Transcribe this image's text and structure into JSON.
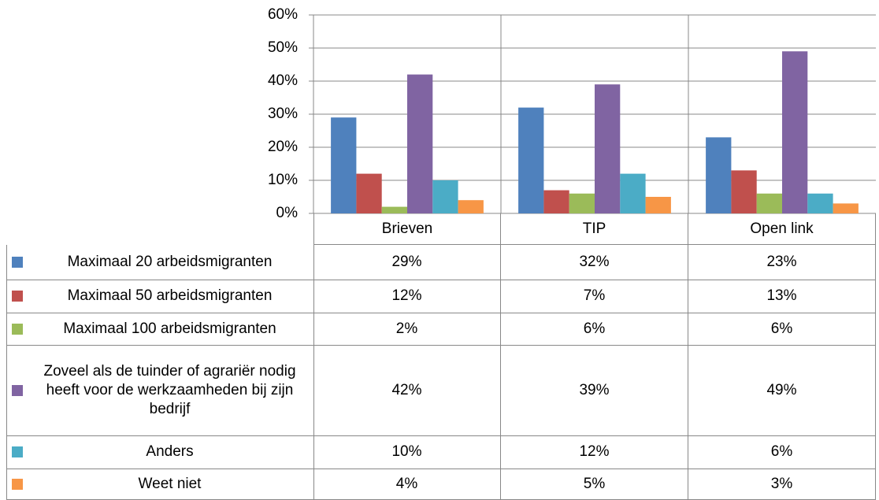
{
  "chart_data": {
    "type": "bar",
    "categories": [
      "Brieven",
      "TIP",
      "Open link"
    ],
    "series": [
      {
        "name": "Maximaal 20 arbeidsmigranten",
        "color": "#4f81bd",
        "values": [
          29,
          32,
          23
        ],
        "value_labels": [
          "29%",
          "32%",
          "23%"
        ]
      },
      {
        "name": "Maximaal 50 arbeidsmigranten",
        "color": "#c0504d",
        "values": [
          12,
          7,
          13
        ],
        "value_labels": [
          "12%",
          "7%",
          "13%"
        ]
      },
      {
        "name": "Maximaal 100 arbeidsmigranten",
        "color": "#9bbb59",
        "values": [
          2,
          6,
          6
        ],
        "value_labels": [
          "2%",
          "6%",
          "6%"
        ]
      },
      {
        "name": "Zoveel als de tuinder of agrariër nodig heeft voor de werkzaamheden bij zijn bedrijf",
        "color": "#8064a2",
        "values": [
          42,
          39,
          49
        ],
        "value_labels": [
          "42%",
          "39%",
          "49%"
        ]
      },
      {
        "name": "Anders",
        "color": "#4bacc6",
        "values": [
          10,
          12,
          6
        ],
        "value_labels": [
          "10%",
          "12%",
          "6%"
        ]
      },
      {
        "name": "Weet niet",
        "color": "#f79646",
        "values": [
          4,
          5,
          3
        ],
        "value_labels": [
          "4%",
          "5%",
          "3%"
        ]
      }
    ],
    "ylim": [
      0,
      60
    ],
    "yticks": [
      {
        "value": 0,
        "label": "0%"
      },
      {
        "value": 10,
        "label": "10%"
      },
      {
        "value": 20,
        "label": "20%"
      },
      {
        "value": 30,
        "label": "30%"
      },
      {
        "value": 40,
        "label": "40%"
      },
      {
        "value": 50,
        "label": "50%"
      },
      {
        "value": 60,
        "label": "60%"
      }
    ],
    "grid": true
  }
}
